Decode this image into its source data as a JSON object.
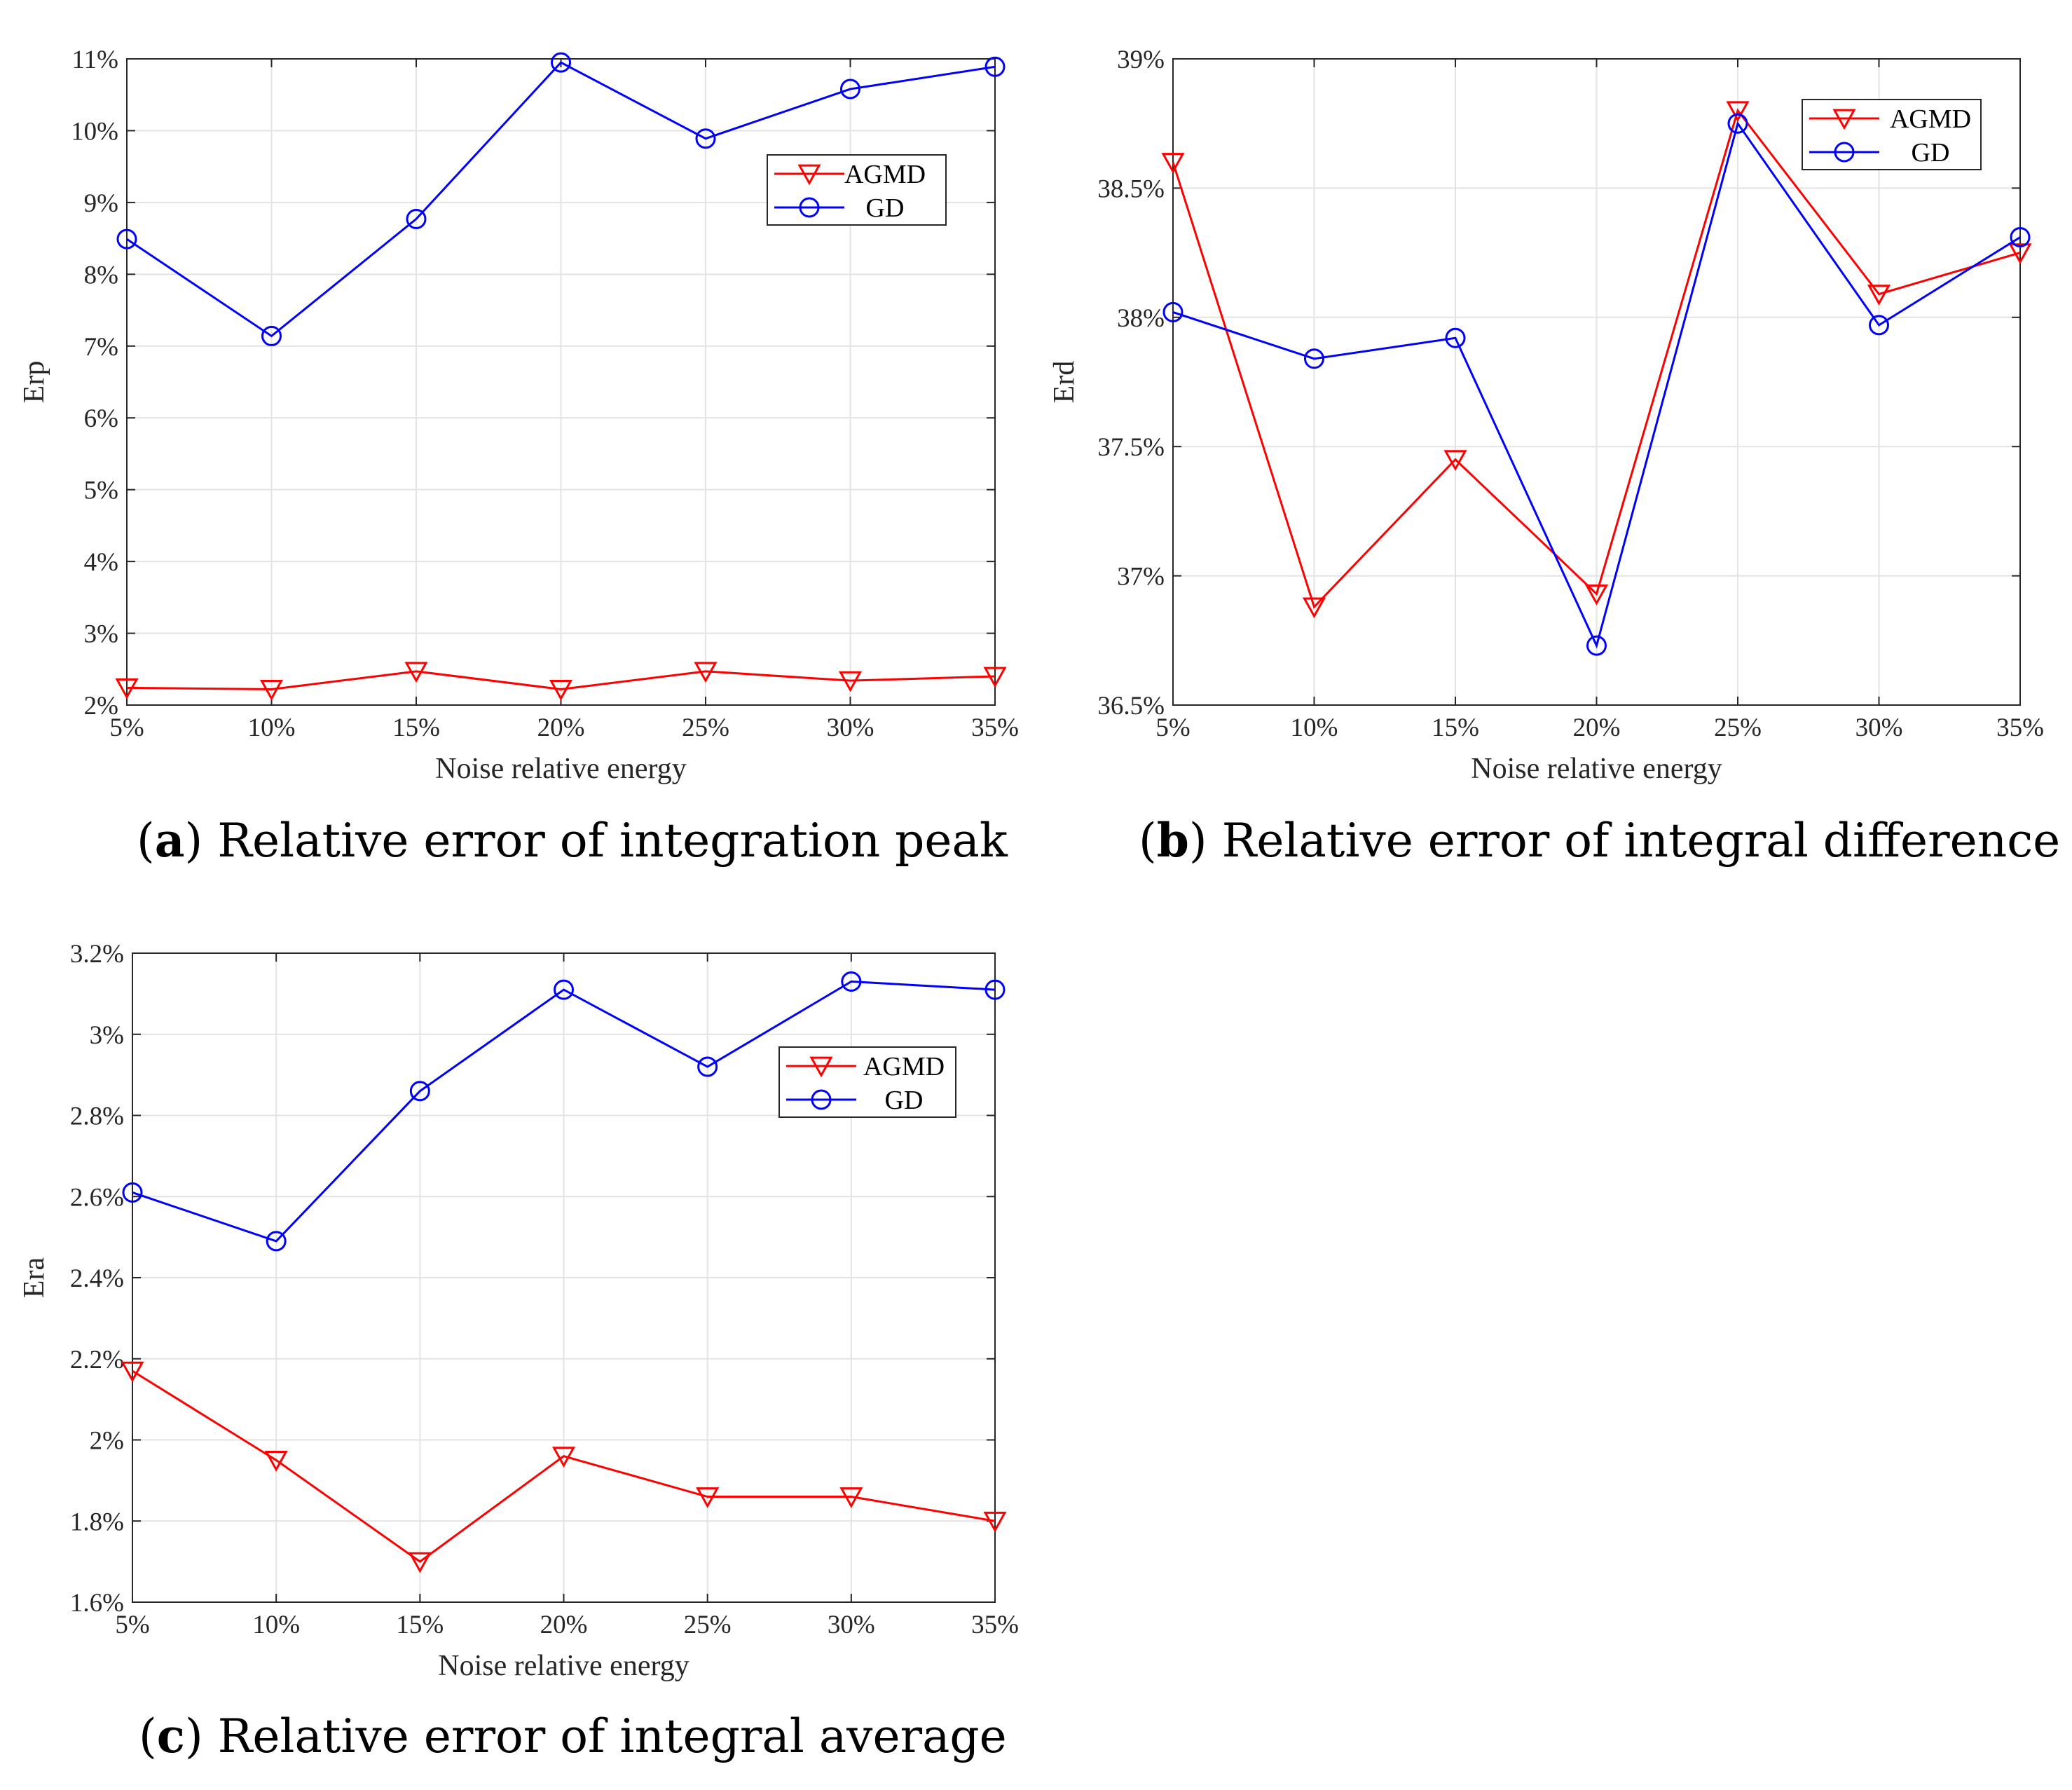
{
  "chart_data": [
    {
      "type": "line",
      "panel": "a",
      "caption_letter": "a",
      "caption_text": "Relative error of integration peak",
      "xlabel": "Noise relative energy",
      "ylabel": "Erp",
      "categories": [
        "5%",
        "10%",
        "15%",
        "20%",
        "25%",
        "30%",
        "35%"
      ],
      "x": [
        5,
        10,
        15,
        20,
        25,
        30,
        35
      ],
      "xlim": [
        5,
        35
      ],
      "ylim": [
        2,
        11
      ],
      "yticks": [
        2,
        3,
        4,
        5,
        6,
        7,
        8,
        9,
        10,
        11
      ],
      "ytick_labels": [
        "2%",
        "3%",
        "4%",
        "5%",
        "6%",
        "7%",
        "8%",
        "9%",
        "10%",
        "11%"
      ],
      "grid": true,
      "legend_position": "upper-right",
      "series": [
        {
          "name": "AGMD",
          "marker": "triangle-down",
          "color": "#ff0000",
          "values": [
            2.24,
            2.22,
            2.47,
            2.22,
            2.47,
            2.34,
            2.4
          ]
        },
        {
          "name": "GD",
          "marker": "circle",
          "color": "#0000ff",
          "values": [
            8.49,
            7.14,
            8.77,
            10.95,
            9.89,
            10.58,
            10.89
          ]
        }
      ]
    },
    {
      "type": "line",
      "panel": "b",
      "caption_letter": "b",
      "caption_text": "Relative error of integral difference",
      "xlabel": "Noise relative energy",
      "ylabel": "Erd",
      "categories": [
        "5%",
        "10%",
        "15%",
        "20%",
        "25%",
        "30%",
        "35%"
      ],
      "x": [
        5,
        10,
        15,
        20,
        25,
        30,
        35
      ],
      "xlim": [
        5,
        35
      ],
      "ylim": [
        36.5,
        39
      ],
      "yticks": [
        36.5,
        37,
        37.5,
        38,
        38.5,
        39
      ],
      "ytick_labels": [
        "36.5%",
        "37%",
        "37.5%",
        "38%",
        "38.5%",
        "39%"
      ],
      "grid": true,
      "legend_position": "upper-right",
      "series": [
        {
          "name": "AGMD",
          "marker": "triangle-down",
          "color": "#ff0000",
          "values": [
            38.6,
            36.88,
            37.45,
            36.93,
            38.8,
            38.09,
            38.25
          ]
        },
        {
          "name": "GD",
          "marker": "circle",
          "color": "#0000ff",
          "values": [
            38.02,
            37.84,
            37.92,
            36.73,
            38.75,
            37.97,
            38.31
          ]
        }
      ]
    },
    {
      "type": "line",
      "panel": "c",
      "caption_letter": "c",
      "caption_text": "Relative error of integral average",
      "xlabel": "Noise relative energy",
      "ylabel": "Era",
      "categories": [
        "5%",
        "10%",
        "15%",
        "20%",
        "25%",
        "30%",
        "35%"
      ],
      "x": [
        5,
        10,
        15,
        20,
        25,
        30,
        35
      ],
      "xlim": [
        5,
        35
      ],
      "ylim": [
        1.6,
        3.2
      ],
      "yticks": [
        1.6,
        1.8,
        2.0,
        2.2,
        2.4,
        2.6,
        2.8,
        3.0,
        3.2
      ],
      "ytick_labels": [
        "1.6%",
        "1.8%",
        "2%",
        "2.2%",
        "2.4%",
        "2.6%",
        "2.8%",
        "3%",
        "3.2%"
      ],
      "grid": true,
      "legend_position": "upper-right",
      "series": [
        {
          "name": "AGMD",
          "marker": "triangle-down",
          "color": "#ff0000",
          "values": [
            2.17,
            1.95,
            1.7,
            1.96,
            1.86,
            1.86,
            1.8
          ]
        },
        {
          "name": "GD",
          "marker": "circle",
          "color": "#0000ff",
          "values": [
            2.61,
            2.49,
            2.86,
            3.11,
            2.92,
            3.13,
            3.11
          ]
        }
      ]
    }
  ]
}
